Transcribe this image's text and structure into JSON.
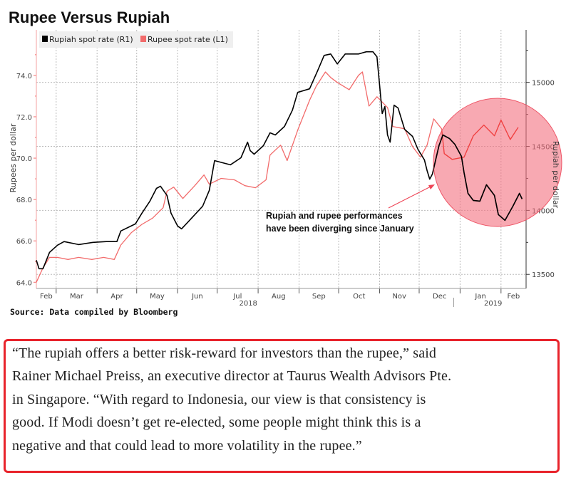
{
  "chart_data": {
    "type": "line",
    "title": "Rupee Versus Rupiah",
    "source": "Source: Data compiled by Bloomberg",
    "xlim": [
      "2018-02-14",
      "2019-02-20"
    ],
    "x_month_labels": [
      "Feb",
      "Mar",
      "Apr",
      "May",
      "Jun",
      "Jul",
      "Aug",
      "Sep",
      "Oct",
      "Nov",
      "Dec",
      "Jan",
      "Feb"
    ],
    "x_year_labels": [
      "2018",
      "2019"
    ],
    "y_left": {
      "label": "Rupees per dollar",
      "lim": [
        63.7,
        76.2
      ],
      "ticks": [
        64.0,
        66.0,
        68.0,
        70.0,
        72.0,
        74.0
      ],
      "tick_labels": [
        "64.0",
        "66.0",
        "68.0",
        "70.0",
        "72.0",
        "74.0"
      ]
    },
    "y_right": {
      "label": "Rupiah per dollar",
      "lim": [
        13390,
        15410
      ],
      "ticks": [
        13500,
        14000,
        14500,
        15000
      ],
      "tick_labels": [
        "13500",
        "14000",
        "14500",
        "15000"
      ]
    },
    "grid": true,
    "legend_position": "top-left",
    "series": [
      {
        "name": "Rupiah spot rate (R1)",
        "axis": "right",
        "color": "#000000",
        "points": [
          [
            "2018-02-14",
            13611
          ],
          [
            "2018-02-16",
            13544
          ],
          [
            "2018-02-19",
            13544
          ],
          [
            "2018-02-24",
            13672
          ],
          [
            "2018-03-02",
            13728
          ],
          [
            "2018-03-07",
            13756
          ],
          [
            "2018-03-18",
            13733
          ],
          [
            "2018-03-29",
            13750
          ],
          [
            "2018-04-08",
            13756
          ],
          [
            "2018-04-16",
            13756
          ],
          [
            "2018-04-19",
            13839
          ],
          [
            "2018-04-30",
            13894
          ],
          [
            "2018-05-05",
            13978
          ],
          [
            "2018-05-11",
            14072
          ],
          [
            "2018-05-16",
            14172
          ],
          [
            "2018-05-19",
            14189
          ],
          [
            "2018-05-24",
            14117
          ],
          [
            "2018-05-27",
            13978
          ],
          [
            "2018-06-01",
            13878
          ],
          [
            "2018-06-04",
            13856
          ],
          [
            "2018-06-09",
            13911
          ],
          [
            "2018-06-20",
            14033
          ],
          [
            "2018-06-25",
            14156
          ],
          [
            "2018-06-29",
            14389
          ],
          [
            "2018-07-03",
            14378
          ],
          [
            "2018-07-11",
            14356
          ],
          [
            "2018-07-19",
            14411
          ],
          [
            "2018-07-24",
            14533
          ],
          [
            "2018-07-26",
            14467
          ],
          [
            "2018-07-29",
            14439
          ],
          [
            "2018-08-05",
            14506
          ],
          [
            "2018-08-10",
            14606
          ],
          [
            "2018-08-14",
            14589
          ],
          [
            "2018-08-21",
            14656
          ],
          [
            "2018-08-27",
            14783
          ],
          [
            "2018-08-31",
            14922
          ],
          [
            "2018-09-09",
            14950
          ],
          [
            "2018-09-15",
            15089
          ],
          [
            "2018-09-20",
            15211
          ],
          [
            "2018-09-25",
            15222
          ],
          [
            "2018-09-30",
            15144
          ],
          [
            "2018-10-06",
            15222
          ],
          [
            "2018-10-16",
            15222
          ],
          [
            "2018-10-22",
            15239
          ],
          [
            "2018-10-27",
            15239
          ],
          [
            "2018-10-30",
            15200
          ],
          [
            "2018-11-01",
            14978
          ],
          [
            "2018-11-03",
            14756
          ],
          [
            "2018-11-05",
            14811
          ],
          [
            "2018-11-07",
            14589
          ],
          [
            "2018-11-09",
            14533
          ],
          [
            "2018-11-12",
            14822
          ],
          [
            "2018-11-15",
            14800
          ],
          [
            "2018-11-20",
            14633
          ],
          [
            "2018-11-26",
            14578
          ],
          [
            "2018-11-30",
            14478
          ],
          [
            "2018-12-05",
            14394
          ],
          [
            "2018-12-07",
            14311
          ],
          [
            "2018-12-09",
            14244
          ],
          [
            "2018-12-11",
            14283
          ],
          [
            "2018-12-16",
            14506
          ],
          [
            "2018-12-19",
            14589
          ],
          [
            "2018-12-24",
            14561
          ],
          [
            "2018-12-28",
            14517
          ],
          [
            "2019-01-02",
            14422
          ],
          [
            "2019-01-04",
            14294
          ],
          [
            "2019-01-07",
            14133
          ],
          [
            "2019-01-11",
            14078
          ],
          [
            "2019-01-16",
            14072
          ],
          [
            "2019-01-21",
            14200
          ],
          [
            "2019-01-27",
            14117
          ],
          [
            "2019-01-30",
            13967
          ],
          [
            "2019-02-04",
            13922
          ],
          [
            "2019-02-10",
            14033
          ],
          [
            "2019-02-15",
            14133
          ],
          [
            "2019-02-17",
            14089
          ]
        ]
      },
      {
        "name": "Rupee spot rate (L1)",
        "axis": "left",
        "color": "#f26b6b",
        "points": [
          [
            "2018-02-14",
            64.0
          ],
          [
            "2018-02-19",
            64.7
          ],
          [
            "2018-02-24",
            65.2
          ],
          [
            "2018-03-02",
            65.2
          ],
          [
            "2018-03-10",
            65.1
          ],
          [
            "2018-03-18",
            65.2
          ],
          [
            "2018-03-28",
            65.1
          ],
          [
            "2018-04-06",
            65.2
          ],
          [
            "2018-04-14",
            65.1
          ],
          [
            "2018-04-19",
            65.8
          ],
          [
            "2018-04-27",
            66.4
          ],
          [
            "2018-05-05",
            66.8
          ],
          [
            "2018-05-13",
            67.1
          ],
          [
            "2018-05-21",
            67.6
          ],
          [
            "2018-05-24",
            68.4
          ],
          [
            "2018-05-29",
            68.6
          ],
          [
            "2018-06-05",
            68.05
          ],
          [
            "2018-06-14",
            68.67
          ],
          [
            "2018-06-21",
            69.19
          ],
          [
            "2018-06-25",
            68.74
          ],
          [
            "2018-07-04",
            69.02
          ],
          [
            "2018-07-14",
            68.95
          ],
          [
            "2018-07-22",
            68.67
          ],
          [
            "2018-07-30",
            68.57
          ],
          [
            "2018-08-07",
            68.95
          ],
          [
            "2018-08-10",
            70.15
          ],
          [
            "2018-08-18",
            70.63
          ],
          [
            "2018-08-23",
            69.88
          ],
          [
            "2018-08-31",
            71.35
          ],
          [
            "2018-09-09",
            72.8
          ],
          [
            "2018-09-14",
            73.48
          ],
          [
            "2018-09-21",
            74.17
          ],
          [
            "2018-09-25",
            73.9
          ],
          [
            "2018-09-30",
            73.66
          ],
          [
            "2018-10-09",
            73.31
          ],
          [
            "2018-10-16",
            74.0
          ],
          [
            "2018-10-19",
            74.17
          ],
          [
            "2018-10-24",
            72.52
          ],
          [
            "2018-10-30",
            72.97
          ],
          [
            "2018-11-07",
            72.45
          ],
          [
            "2018-11-11",
            71.53
          ],
          [
            "2018-11-20",
            71.42
          ],
          [
            "2018-11-26",
            70.56
          ],
          [
            "2018-12-02",
            70.05
          ],
          [
            "2018-12-07",
            70.63
          ],
          [
            "2018-12-12",
            71.9
          ],
          [
            "2018-12-18",
            71.42
          ],
          [
            "2018-12-20",
            70.22
          ],
          [
            "2018-12-26",
            69.94
          ],
          [
            "2019-01-04",
            70.05
          ],
          [
            "2019-01-11",
            71.08
          ],
          [
            "2019-01-19",
            71.6
          ],
          [
            "2019-01-27",
            71.08
          ],
          [
            "2019-02-01",
            71.84
          ],
          [
            "2019-02-08",
            70.9
          ],
          [
            "2019-02-14",
            71.49
          ]
        ]
      }
    ],
    "annotation": {
      "lines": [
        "Rupiah and rupee performances",
        "have been diverging since January"
      ],
      "highlight_color": "#f4707f"
    }
  },
  "quote": {
    "lines": [
      "“The rupiah offers a better risk-reward for investors than the rupee,” said",
      "Rainer Michael Preiss, an executive director at Taurus Wealth Advisors Pte.",
      "in Singapore. “With regard to Indonesia, our view is that consistency is",
      "good. If Modi doesn’t get re-elected, some people might think this is a",
      "negative and that could lead to more volatility in the rupee.”"
    ],
    "border_color": "#e8232b"
  }
}
